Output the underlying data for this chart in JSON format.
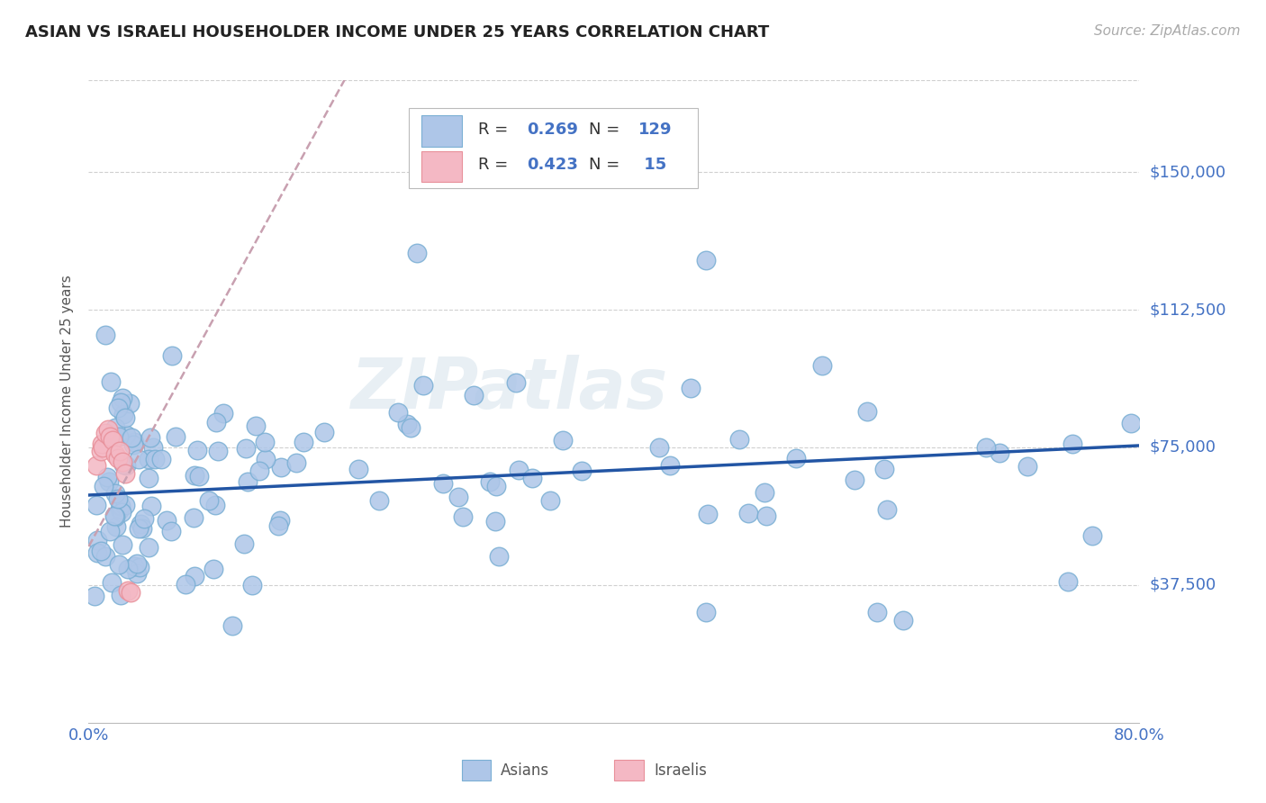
{
  "title": "ASIAN VS ISRAELI HOUSEHOLDER INCOME UNDER 25 YEARS CORRELATION CHART",
  "source_text": "Source: ZipAtlas.com",
  "ylabel": "Householder Income Under 25 years",
  "watermark": "ZIPatlas",
  "xlim": [
    0.0,
    0.8
  ],
  "ylim": [
    0,
    175000
  ],
  "ytick_vals": [
    37500,
    75000,
    112500,
    150000
  ],
  "ytick_labels": [
    "$37,500",
    "$75,000",
    "$112,500",
    "$150,000"
  ],
  "title_color": "#222222",
  "title_fontsize": 13,
  "axis_color": "#4472c4",
  "grid_color": "#d0d0d0",
  "asian_color": "#aec6e8",
  "asian_edge_color": "#7aafd4",
  "israeli_color": "#f4b8c4",
  "israeli_edge_color": "#e8909a",
  "trend_asian_color": "#2255a4",
  "trend_israeli_color": "#e87f8a",
  "source_color": "#aaaaaa"
}
